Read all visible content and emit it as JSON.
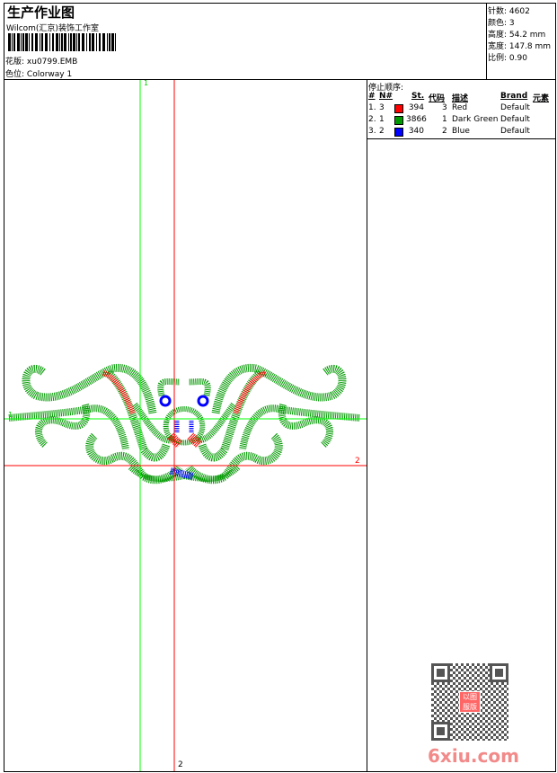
{
  "header": {
    "title": "生产作业图",
    "company": "Wilcom(汇京)装饰工作室",
    "design_label": "花版:",
    "design_value": "xu0799.EMB",
    "colorway_label": "色位:",
    "colorway_value": "Colorway 1"
  },
  "info": {
    "stitches": "针数: 4602",
    "colors": "颜色: 3",
    "height": "高度: 54.2 mm",
    "width": "宽度: 147.8 mm",
    "scale": "比例: 0.90"
  },
  "stop_sequence": {
    "title": "停止顺序:",
    "columns": [
      "#",
      "N#",
      "St.",
      "代码",
      "描述",
      "Brand",
      "元素"
    ],
    "rows": [
      {
        "idx": "1.",
        "n": "3",
        "color": "#ff0000",
        "st": "394",
        "code": "3",
        "desc": "Red",
        "brand": "Default"
      },
      {
        "idx": "2.",
        "n": "1",
        "color": "#009900",
        "st": "3866",
        "code": "1",
        "desc": "Dark Green",
        "brand": "Default"
      },
      {
        "idx": "3.",
        "n": "2",
        "color": "#0000ff",
        "st": "340",
        "code": "2",
        "desc": "Blue",
        "brand": "Default"
      }
    ]
  },
  "guides": {
    "v1": "1",
    "h1": "1",
    "h2": "2",
    "v2": "2",
    "green": "#00ff00",
    "red": "#ff0000"
  },
  "watermark": {
    "text": "6xiu.com",
    "stamp": "以图服版"
  }
}
